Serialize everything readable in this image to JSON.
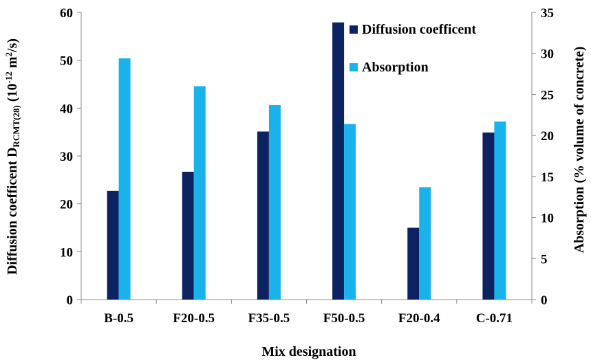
{
  "chart_data": {
    "type": "bar",
    "xlabel": "Mix designation",
    "ylabel_left": {
      "main": "Diffusion coefficent D",
      "subscript": "RCMT(28)",
      "unit_open": " (10",
      "unit_exp": "-12",
      "unit_mid": " m",
      "unit_exp2": "2",
      "unit_close": "/s)"
    },
    "ylabel_right": "Absorption (% volume of concrete)",
    "categories": [
      "B-0.5",
      "F20-0.5",
      "F35-0.5",
      "F50-0.5",
      "F20-0.4",
      "C-0.71"
    ],
    "y_left": {
      "min": 0,
      "max": 60,
      "step": 10,
      "ticks": [
        "0",
        "10",
        "20",
        "30",
        "40",
        "50",
        "60"
      ]
    },
    "y_right": {
      "min": 0,
      "max": 35,
      "step": 5,
      "ticks": [
        "0",
        "5",
        "10",
        "15",
        "20",
        "25",
        "30",
        "35"
      ]
    },
    "series": [
      {
        "name": "Diffusion coefficent",
        "axis": "left",
        "color": "#0d2260",
        "values": [
          22.7,
          26.7,
          35.1,
          57.9,
          15.0,
          34.9
        ]
      },
      {
        "name": "Absorption",
        "axis": "right",
        "color": "#1ab2ea",
        "values": [
          29.4,
          26.0,
          23.7,
          21.4,
          13.7,
          21.7
        ]
      }
    ],
    "legend_position": "top-right (inside plot)",
    "grid": false
  }
}
